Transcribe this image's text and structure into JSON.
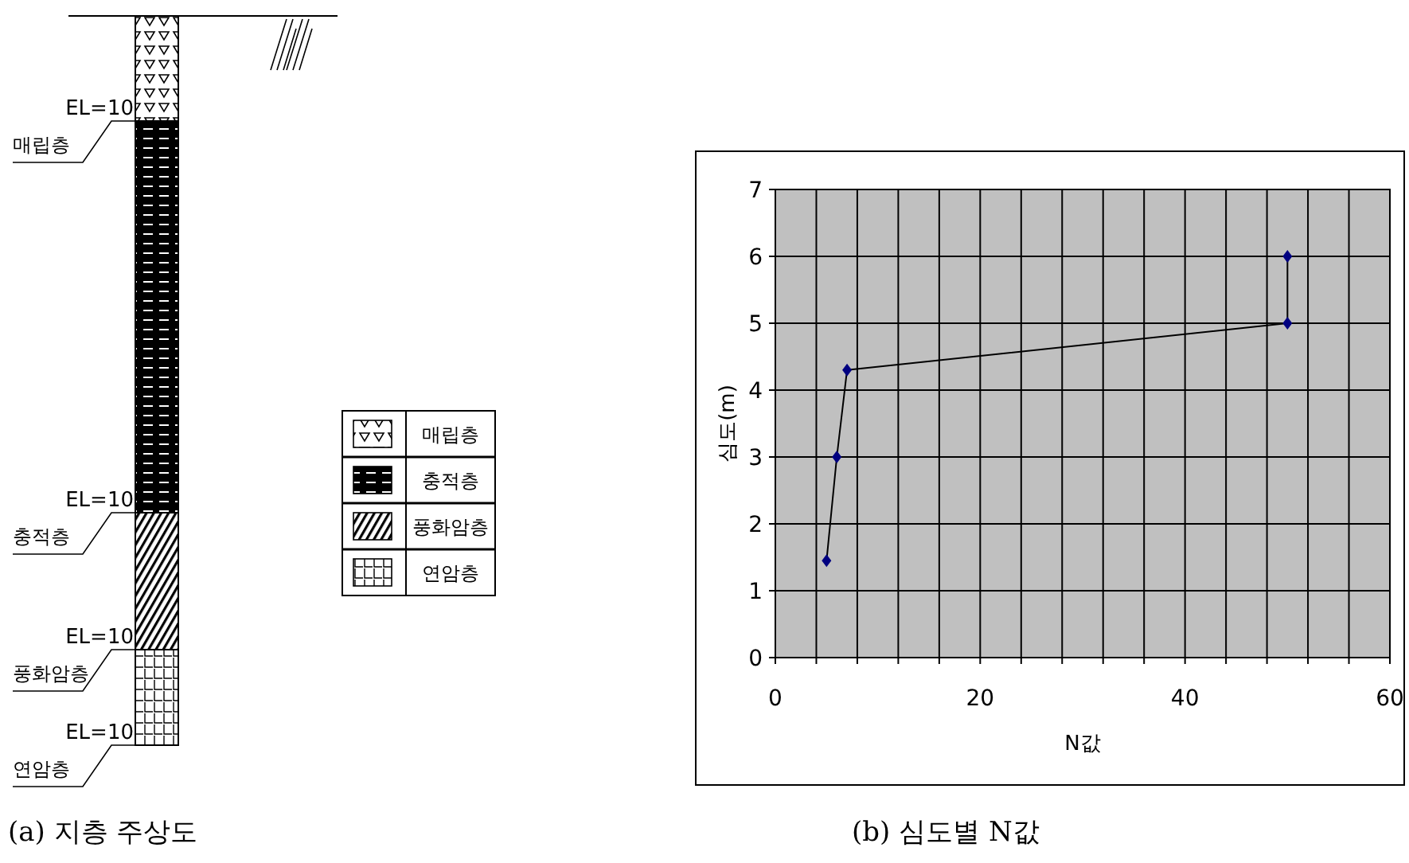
{
  "chart_data": [
    {
      "type": "other",
      "title": "(a) 지층 주상도",
      "categories": [
        "매립층",
        "충적층",
        "풍화암층",
        "연암층"
      ],
      "annotations": [
        "EL=10",
        "EL=10",
        "EL=10",
        "EL=10"
      ]
    },
    {
      "type": "line",
      "title": "(b) 심도별 N값",
      "xlabel": "N값",
      "ylabel": "심도(m)",
      "x": [
        5,
        6,
        7,
        50,
        50
      ],
      "series": [
        {
          "color": "#000080",
          "values": [
            1.45,
            3,
            4.3,
            5,
            6
          ]
        }
      ],
      "xlim": [
        0,
        60
      ],
      "ylim": [
        0,
        7
      ],
      "xticks": [
        0,
        {
          "value": 4,
          "label": null
        },
        {
          "value": 8,
          "label": null
        },
        {
          "value": 12,
          "label": null
        },
        {
          "value": 16,
          "label": null
        },
        20,
        {
          "value": 24,
          "label": null
        },
        {
          "value": 28,
          "label": null
        },
        {
          "value": 32,
          "label": null
        },
        {
          "value": 36,
          "label": null
        },
        40,
        {
          "value": 44,
          "label": null
        },
        {
          "value": 48,
          "label": null
        },
        {
          "value": 52,
          "label": null
        },
        {
          "value": 56,
          "label": null
        },
        60
      ],
      "yticks": [
        0,
        1,
        2,
        3,
        4,
        5,
        6,
        7
      ],
      "grid": true,
      "marker": "diamond",
      "line_style": "solid"
    }
  ]
}
